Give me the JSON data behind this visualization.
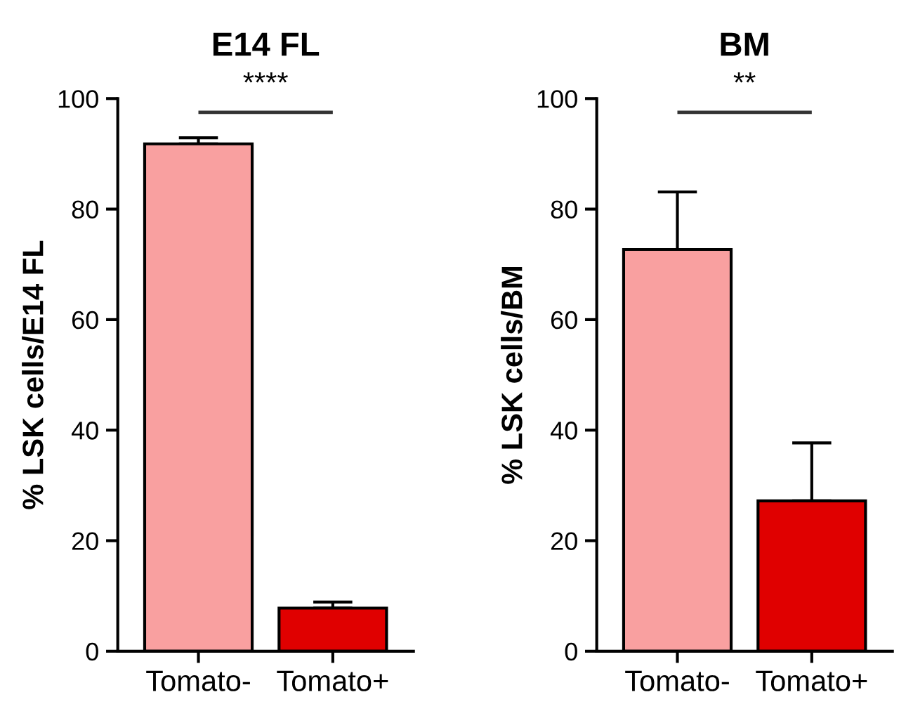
{
  "chart_data": [
    {
      "type": "bar",
      "title": "E14 FL",
      "ylabel": "% LSK cells/E14 FL",
      "categories": [
        "Tomato-",
        "Tomato+"
      ],
      "values": [
        91.8,
        7.8
      ],
      "colors": [
        "#f9a0a0",
        "#e00000"
      ],
      "errors": [
        [
          91.8,
          92.9
        ],
        [
          7.8,
          8.9
        ]
      ],
      "ylim": [
        0,
        100
      ],
      "yticks": [
        0,
        20,
        40,
        60,
        80,
        100
      ],
      "grid": false,
      "annotations": [
        "****"
      ]
    },
    {
      "type": "bar",
      "title": "BM",
      "ylabel": "% LSK cells/BM",
      "categories": [
        "Tomato-",
        "Tomato+"
      ],
      "values": [
        72.7,
        27.2
      ],
      "colors": [
        "#f9a0a0",
        "#e00000"
      ],
      "errors": [
        [
          72.7,
          83.1
        ],
        [
          27.2,
          37.7
        ]
      ],
      "ylim": [
        0,
        100
      ],
      "yticks": [
        0,
        20,
        40,
        60,
        80,
        100
      ],
      "grid": false,
      "annotations": [
        "**"
      ]
    }
  ]
}
